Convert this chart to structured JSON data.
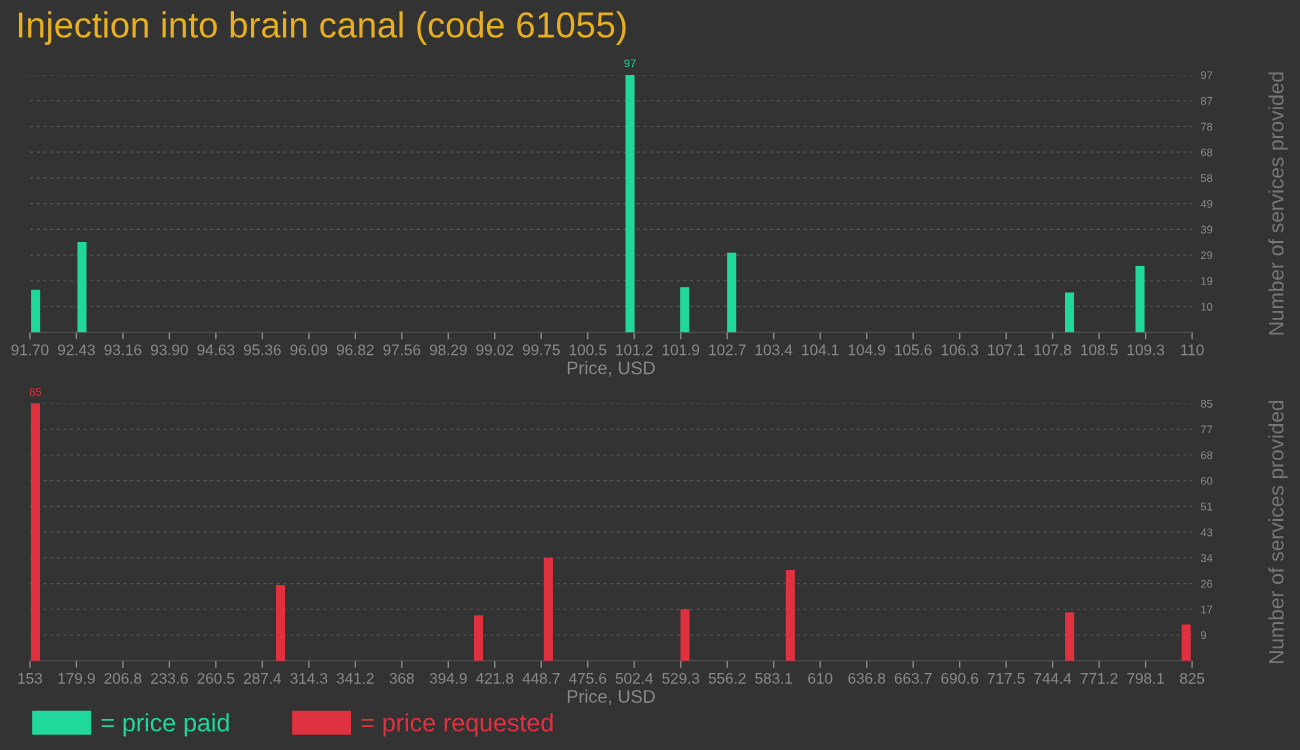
{
  "chart_data": [
    {
      "type": "bar",
      "title": "Injection into brain canal (code 61055)",
      "xlabel": "Price, USD",
      "ylabel": "Number of services provided",
      "x": [
        91.79,
        92.52,
        101.15,
        102.01,
        102.75,
        108.07,
        109.18
      ],
      "series": [
        {
          "name": "= price paid",
          "color": "#20d89c",
          "values": [
            16,
            34,
            97,
            17,
            30,
            15,
            25
          ],
          "value_labels": [
            null,
            null,
            "97",
            null,
            null,
            null,
            null
          ]
        }
      ],
      "xlim": [
        91.7,
        110
      ],
      "xticks": [
        {
          "value": 91.7,
          "label": "91.70"
        },
        {
          "value": 92.432,
          "label": "92.43"
        },
        {
          "value": 93.164,
          "label": "93.16"
        },
        {
          "value": 93.896,
          "label": "93.90"
        },
        {
          "value": 94.628,
          "label": "94.63"
        },
        95.36,
        {
          "value": 96.092,
          "label": "96.09"
        },
        {
          "value": 96.824,
          "label": "96.82"
        },
        {
          "value": 97.556,
          "label": "97.56"
        },
        {
          "value": 98.288,
          "label": "98.29"
        },
        99.02,
        {
          "value": 99.752,
          "label": "99.75"
        },
        {
          "value": 100.484,
          "label": "100.5"
        },
        {
          "value": 101.216,
          "label": "101.2"
        },
        {
          "value": 101.948,
          "label": "101.9"
        },
        {
          "value": 102.68,
          "label": "102.7"
        },
        {
          "value": 103.412,
          "label": "103.4"
        },
        {
          "value": 104.144,
          "label": "104.1"
        },
        {
          "value": 104.876,
          "label": "104.9"
        },
        {
          "value": 105.608,
          "label": "105.6"
        },
        {
          "value": 106.34,
          "label": "106.3"
        },
        {
          "value": 107.072,
          "label": "107.1"
        },
        {
          "value": 107.804,
          "label": "107.8"
        },
        {
          "value": 108.536,
          "label": "108.5"
        },
        {
          "value": 109.268,
          "label": "109.3"
        },
        110
      ],
      "ylim": [
        0,
        97
      ],
      "yticks": [
        {
          "value": 9.7,
          "label": "10"
        },
        {
          "value": 19.4,
          "label": "19"
        },
        {
          "value": 29.1,
          "label": "29"
        },
        {
          "value": 38.8,
          "label": "39"
        },
        {
          "value": 48.5,
          "label": "49"
        },
        {
          "value": 58.2,
          "label": "58"
        },
        {
          "value": 67.9,
          "label": "68"
        },
        {
          "value": 77.6,
          "label": "78"
        },
        {
          "value": 87.3,
          "label": "87"
        },
        97
      ],
      "grid": "y",
      "legend": "bottom left"
    },
    {
      "type": "bar",
      "xlabel": "Price, USD",
      "ylabel": "Number of services provided",
      "x": [
        156.2,
        297.9,
        412.4,
        452.8,
        531.8,
        592.7,
        754.2,
        821.6
      ],
      "series": [
        {
          "name": "= price requested",
          "color": "#e0313f",
          "values": [
            85,
            25,
            15,
            34,
            17,
            30,
            16,
            12
          ],
          "value_labels": [
            "85",
            null,
            null,
            null,
            null,
            null,
            null,
            null
          ]
        }
      ],
      "xlim": [
        153,
        825
      ],
      "xticks": [
        153,
        {
          "value": 179.88,
          "label": "179.9"
        },
        {
          "value": 206.76,
          "label": "206.8"
        },
        {
          "value": 233.64,
          "label": "233.6"
        },
        {
          "value": 260.52,
          "label": "260.5"
        },
        287.4,
        {
          "value": 314.28,
          "label": "314.3"
        },
        {
          "value": 341.16,
          "label": "341.2"
        },
        {
          "value": 368.04,
          "label": "368"
        },
        {
          "value": 394.92,
          "label": "394.9"
        },
        421.8,
        {
          "value": 448.68,
          "label": "448.7"
        },
        {
          "value": 475.56,
          "label": "475.6"
        },
        {
          "value": 502.44,
          "label": "502.4"
        },
        {
          "value": 529.32,
          "label": "529.3"
        },
        556.2,
        {
          "value": 583.08,
          "label": "583.1"
        },
        {
          "value": 609.96,
          "label": "610"
        },
        {
          "value": 636.84,
          "label": "636.8"
        },
        {
          "value": 663.72,
          "label": "663.7"
        },
        690.6,
        {
          "value": 717.48,
          "label": "717.5"
        },
        {
          "value": 744.36,
          "label": "744.4"
        },
        {
          "value": 771.24,
          "label": "771.2"
        },
        {
          "value": 798.12,
          "label": "798.1"
        },
        825
      ],
      "ylim": [
        0,
        85
      ],
      "yticks": [
        {
          "value": 8.5,
          "label": "9"
        },
        17,
        {
          "value": 25.5,
          "label": "26"
        },
        34,
        {
          "value": 42.5,
          "label": "43"
        },
        51,
        {
          "value": 59.5,
          "label": "60"
        },
        68,
        {
          "value": 76.5,
          "label": "77"
        },
        85
      ],
      "grid": "y",
      "legend": "bottom left"
    }
  ]
}
